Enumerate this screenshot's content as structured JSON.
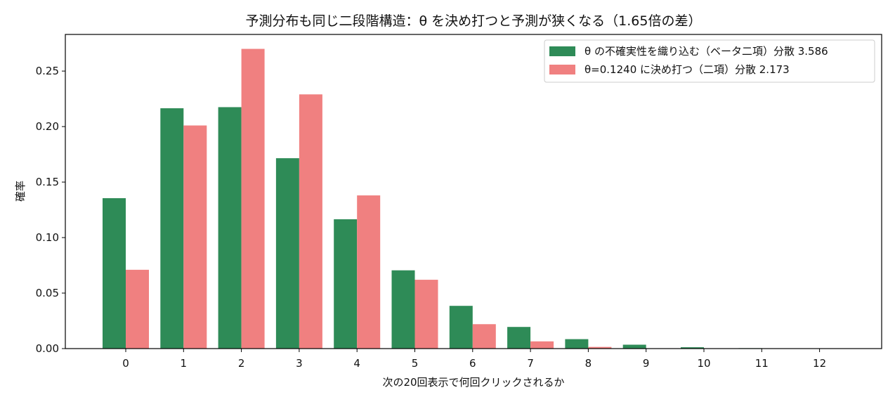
{
  "chart_data": {
    "type": "bar",
    "title": "予測分布も同じ二段階構造：θ を決め打つと予測が狭くなる（1.65倍の差）",
    "xlabel": "次の20回表示で何回クリックされるか",
    "ylabel": "確率",
    "categories": [
      "0",
      "1",
      "2",
      "3",
      "4",
      "5",
      "6",
      "7",
      "8",
      "9",
      "10",
      "11",
      "12"
    ],
    "ylim": [
      0,
      0.283
    ],
    "yticks": [
      "0.00",
      "0.05",
      "0.10",
      "0.15",
      "0.20",
      "0.25"
    ],
    "legend_position": "top-right",
    "grid": false,
    "series": [
      {
        "name": "θ の不確実性を織り込む（ベータ二項）分散 3.586",
        "color": "#2e8b57",
        "values": [
          0.1355,
          0.2165,
          0.2175,
          0.1715,
          0.1165,
          0.0705,
          0.0385,
          0.0195,
          0.0085,
          0.0035,
          0.0012,
          0.0004,
          0.0001
        ]
      },
      {
        "name": "θ=0.1240 に決め打つ（二項）分散 2.173",
        "color": "#f08080",
        "values": [
          0.071,
          0.201,
          0.27,
          0.229,
          0.138,
          0.062,
          0.022,
          0.0065,
          0.0015,
          0.0003,
          0.0,
          0.0,
          0.0
        ]
      }
    ]
  }
}
